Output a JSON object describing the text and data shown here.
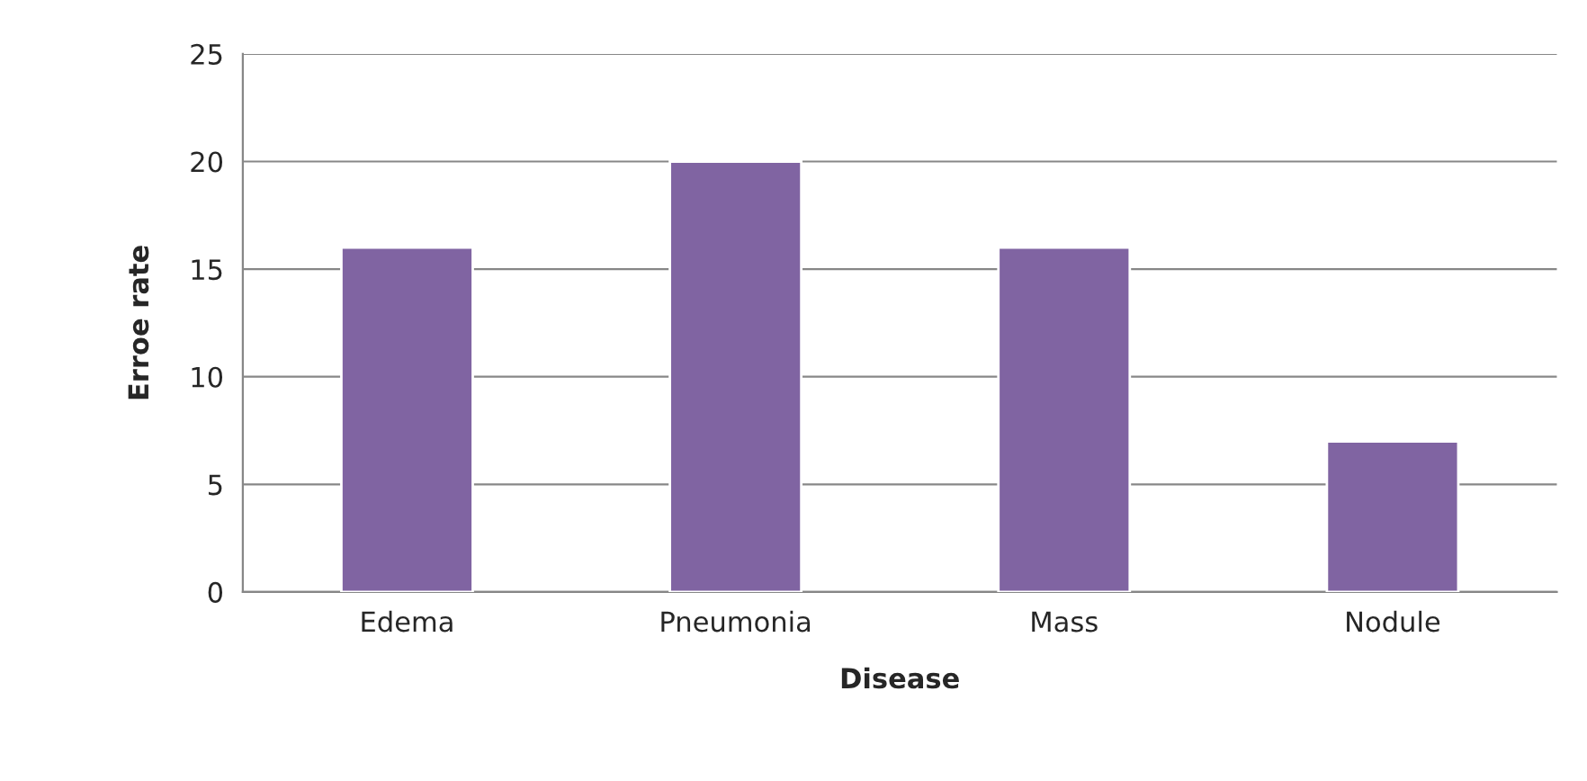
{
  "chart_data": {
    "type": "bar",
    "xlabel": "Disease",
    "ylabel": "Erroe rate",
    "categories": [
      "Edema",
      "Pneumonia",
      "Mass",
      "Nodule"
    ],
    "values": [
      16,
      20,
      16,
      7
    ],
    "color": "#8064a2",
    "ylim": [
      0,
      25
    ],
    "yticks": [
      0,
      5,
      10,
      15,
      20,
      25
    ],
    "grid": "y",
    "legend": false
  }
}
